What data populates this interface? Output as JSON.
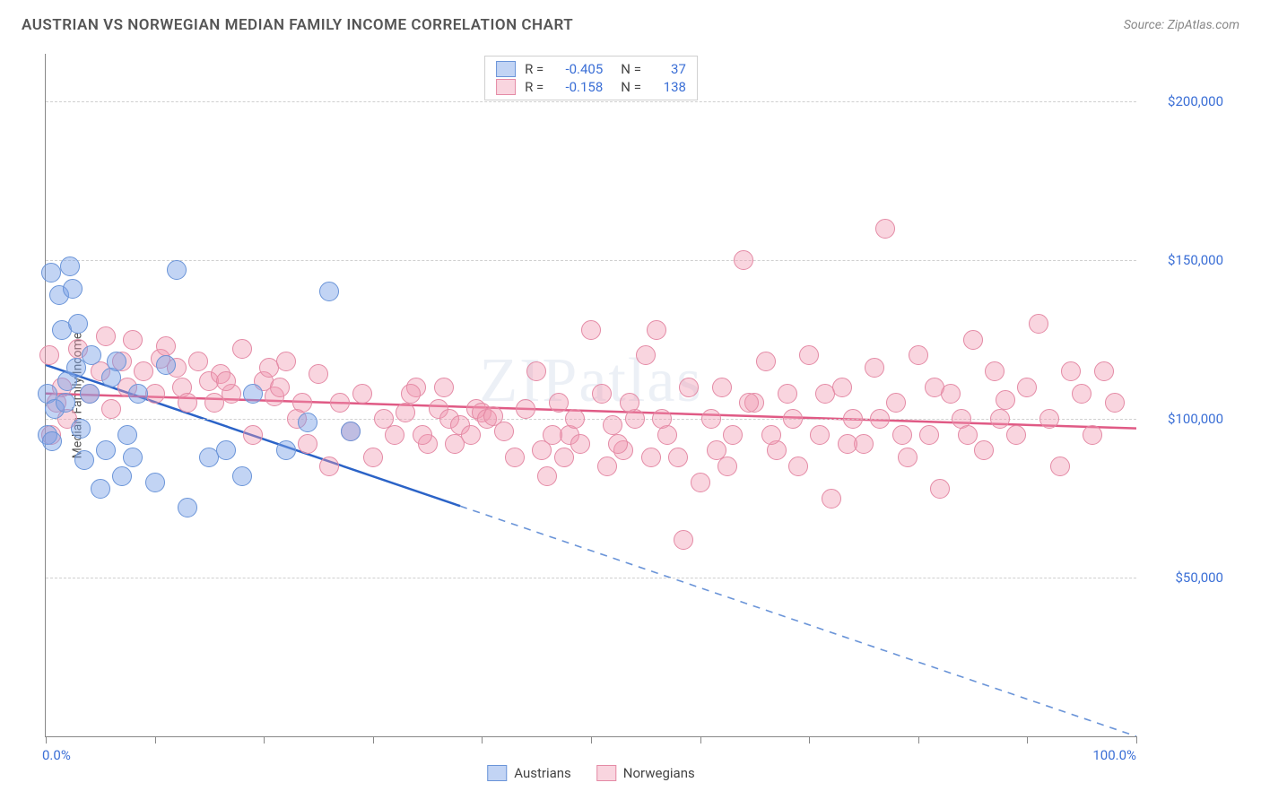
{
  "header": {
    "title": "AUSTRIAN VS NORWEGIAN MEDIAN FAMILY INCOME CORRELATION CHART",
    "source": "Source: ZipAtlas.com"
  },
  "watermark": "ZIPatlas",
  "chart": {
    "type": "scatter",
    "y_axis_title": "Median Family Income",
    "xlim": [
      0,
      100
    ],
    "ylim": [
      0,
      215000
    ],
    "x_ticks": [
      0,
      10,
      20,
      30,
      40,
      50,
      60,
      70,
      80,
      90,
      100
    ],
    "x_tick_labels_visible": {
      "0": "0.0%",
      "100": "100.0%"
    },
    "y_grid": [
      50000,
      100000,
      150000,
      200000
    ],
    "y_tick_labels": {
      "50000": "$50,000",
      "100000": "$100,000",
      "150000": "$150,000",
      "200000": "$200,000"
    },
    "background_color": "#ffffff",
    "grid_color": "#d0d0d0",
    "axis_color": "#888888",
    "tick_label_color": "#3b6fd6",
    "tick_label_fontsize": 15,
    "title_color": "#555555",
    "title_fontsize": 17,
    "series": {
      "austrians": {
        "label": "Austrians",
        "fill": "rgba(120,160,230,0.45)",
        "stroke": "#6a94d8",
        "R": "-0.405",
        "N": "37",
        "trend": {
          "y_at_x0": 117000,
          "y_at_x100": 0,
          "solid_until_x": 38,
          "solid_color": "#2b63c7",
          "dash_color": "#6a94d8",
          "width": 2.5
        },
        "marker_radius": 11,
        "points": [
          [
            0.2,
            108000
          ],
          [
            0.2,
            95000
          ],
          [
            0.5,
            146000
          ],
          [
            0.6,
            93000
          ],
          [
            0.8,
            103000
          ],
          [
            1.2,
            139000
          ],
          [
            1.5,
            128000
          ],
          [
            1.8,
            105000
          ],
          [
            2.0,
            112000
          ],
          [
            2.2,
            148000
          ],
          [
            2.5,
            141000
          ],
          [
            2.8,
            116000
          ],
          [
            3.0,
            130000
          ],
          [
            3.2,
            97000
          ],
          [
            3.5,
            87000
          ],
          [
            4.0,
            108000
          ],
          [
            4.2,
            120000
          ],
          [
            5.0,
            78000
          ],
          [
            5.5,
            90000
          ],
          [
            6.0,
            113000
          ],
          [
            6.5,
            118000
          ],
          [
            7.0,
            82000
          ],
          [
            7.5,
            95000
          ],
          [
            8.0,
            88000
          ],
          [
            8.5,
            108000
          ],
          [
            10.0,
            80000
          ],
          [
            11.0,
            117000
          ],
          [
            12.0,
            147000
          ],
          [
            13.0,
            72000
          ],
          [
            15.0,
            88000
          ],
          [
            16.5,
            90000
          ],
          [
            18.0,
            82000
          ],
          [
            19.0,
            108000
          ],
          [
            22.0,
            90000
          ],
          [
            26.0,
            140000
          ],
          [
            24.0,
            99000
          ],
          [
            28.0,
            96000
          ]
        ]
      },
      "norwegians": {
        "label": "Norwegians",
        "fill": "rgba(240,150,175,0.40)",
        "stroke": "#e48aa5",
        "R": "-0.158",
        "N": "138",
        "trend": {
          "y_at_x0": 108000,
          "y_at_x100": 97000,
          "solid_until_x": 100,
          "solid_color": "#e05a85",
          "dash_color": "#e48aa5",
          "width": 2.5
        },
        "marker_radius": 11,
        "points": [
          [
            0.3,
            120000
          ],
          [
            0.5,
            95000
          ],
          [
            1,
            105000
          ],
          [
            1.5,
            110000
          ],
          [
            2,
            100000
          ],
          [
            3,
            122000
          ],
          [
            4,
            108000
          ],
          [
            5,
            115000
          ],
          [
            5.5,
            126000
          ],
          [
            6,
            103000
          ],
          [
            7,
            118000
          ],
          [
            7.5,
            110000
          ],
          [
            8,
            125000
          ],
          [
            9,
            115000
          ],
          [
            10,
            108000
          ],
          [
            10.5,
            119000
          ],
          [
            11,
            123000
          ],
          [
            12,
            116000
          ],
          [
            12.5,
            110000
          ],
          [
            13,
            105000
          ],
          [
            14,
            118000
          ],
          [
            15,
            112000
          ],
          [
            15.5,
            105000
          ],
          [
            16,
            114000
          ],
          [
            17,
            108000
          ],
          [
            18,
            122000
          ],
          [
            19,
            95000
          ],
          [
            20,
            112000
          ],
          [
            21,
            107000
          ],
          [
            22,
            118000
          ],
          [
            23,
            100000
          ],
          [
            24,
            92000
          ],
          [
            25,
            114000
          ],
          [
            26,
            85000
          ],
          [
            27,
            105000
          ],
          [
            28,
            96000
          ],
          [
            29,
            108000
          ],
          [
            30,
            88000
          ],
          [
            31,
            100000
          ],
          [
            32,
            95000
          ],
          [
            33,
            102000
          ],
          [
            34,
            110000
          ],
          [
            35,
            92000
          ],
          [
            36,
            103000
          ],
          [
            37,
            100000
          ],
          [
            38,
            98000
          ],
          [
            39,
            95000
          ],
          [
            39.5,
            103000
          ],
          [
            40,
            102000
          ],
          [
            40.5,
            100000
          ],
          [
            41,
            101000
          ],
          [
            42,
            96000
          ],
          [
            43,
            88000
          ],
          [
            44,
            103000
          ],
          [
            45,
            115000
          ],
          [
            46,
            82000
          ],
          [
            47,
            105000
          ],
          [
            48,
            95000
          ],
          [
            49,
            92000
          ],
          [
            50,
            128000
          ],
          [
            51,
            108000
          ],
          [
            52,
            98000
          ],
          [
            53,
            90000
          ],
          [
            54,
            100000
          ],
          [
            55,
            120000
          ],
          [
            56,
            128000
          ],
          [
            57,
            95000
          ],
          [
            58,
            88000
          ],
          [
            59,
            110000
          ],
          [
            60,
            80000
          ],
          [
            58.5,
            62000
          ],
          [
            61,
            100000
          ],
          [
            62,
            110000
          ],
          [
            63,
            95000
          ],
          [
            64,
            150000
          ],
          [
            65,
            105000
          ],
          [
            66,
            118000
          ],
          [
            67,
            90000
          ],
          [
            68,
            108000
          ],
          [
            69,
            85000
          ],
          [
            70,
            120000
          ],
          [
            71,
            95000
          ],
          [
            72,
            75000
          ],
          [
            73,
            110000
          ],
          [
            74,
            100000
          ],
          [
            75,
            92000
          ],
          [
            76,
            116000
          ],
          [
            77,
            160000
          ],
          [
            78,
            105000
          ],
          [
            79,
            88000
          ],
          [
            80,
            120000
          ],
          [
            81,
            95000
          ],
          [
            82,
            78000
          ],
          [
            83,
            108000
          ],
          [
            84,
            100000
          ],
          [
            85,
            125000
          ],
          [
            86,
            90000
          ],
          [
            87,
            115000
          ],
          [
            88,
            106000
          ],
          [
            89,
            95000
          ],
          [
            90,
            110000
          ],
          [
            91,
            130000
          ],
          [
            92,
            100000
          ],
          [
            93,
            85000
          ],
          [
            94,
            115000
          ],
          [
            95,
            108000
          ],
          [
            96,
            95000
          ],
          [
            97,
            115000
          ],
          [
            98,
            105000
          ],
          [
            45.5,
            90000
          ],
          [
            46.5,
            95000
          ],
          [
            47.5,
            88000
          ],
          [
            48.5,
            100000
          ],
          [
            51.5,
            85000
          ],
          [
            52.5,
            92000
          ],
          [
            53.5,
            105000
          ],
          [
            55.5,
            88000
          ],
          [
            56.5,
            100000
          ],
          [
            61.5,
            90000
          ],
          [
            62.5,
            85000
          ],
          [
            64.5,
            105000
          ],
          [
            66.5,
            95000
          ],
          [
            68.5,
            100000
          ],
          [
            71.5,
            108000
          ],
          [
            73.5,
            92000
          ],
          [
            76.5,
            100000
          ],
          [
            78.5,
            95000
          ],
          [
            81.5,
            110000
          ],
          [
            84.5,
            95000
          ],
          [
            87.5,
            100000
          ],
          [
            33.5,
            108000
          ],
          [
            34.5,
            95000
          ],
          [
            36.5,
            110000
          ],
          [
            37.5,
            92000
          ],
          [
            20.5,
            116000
          ],
          [
            21.5,
            110000
          ],
          [
            23.5,
            105000
          ],
          [
            16.5,
            112000
          ]
        ]
      }
    }
  },
  "stats_legend": {
    "rows": [
      {
        "series": "austrians",
        "r_label": "R =",
        "n_label": "N ="
      },
      {
        "series": "norwegians",
        "r_label": "R =",
        "n_label": "N ="
      }
    ]
  },
  "bottom_legend": {
    "items": [
      {
        "series": "austrians"
      },
      {
        "series": "norwegians"
      }
    ]
  }
}
